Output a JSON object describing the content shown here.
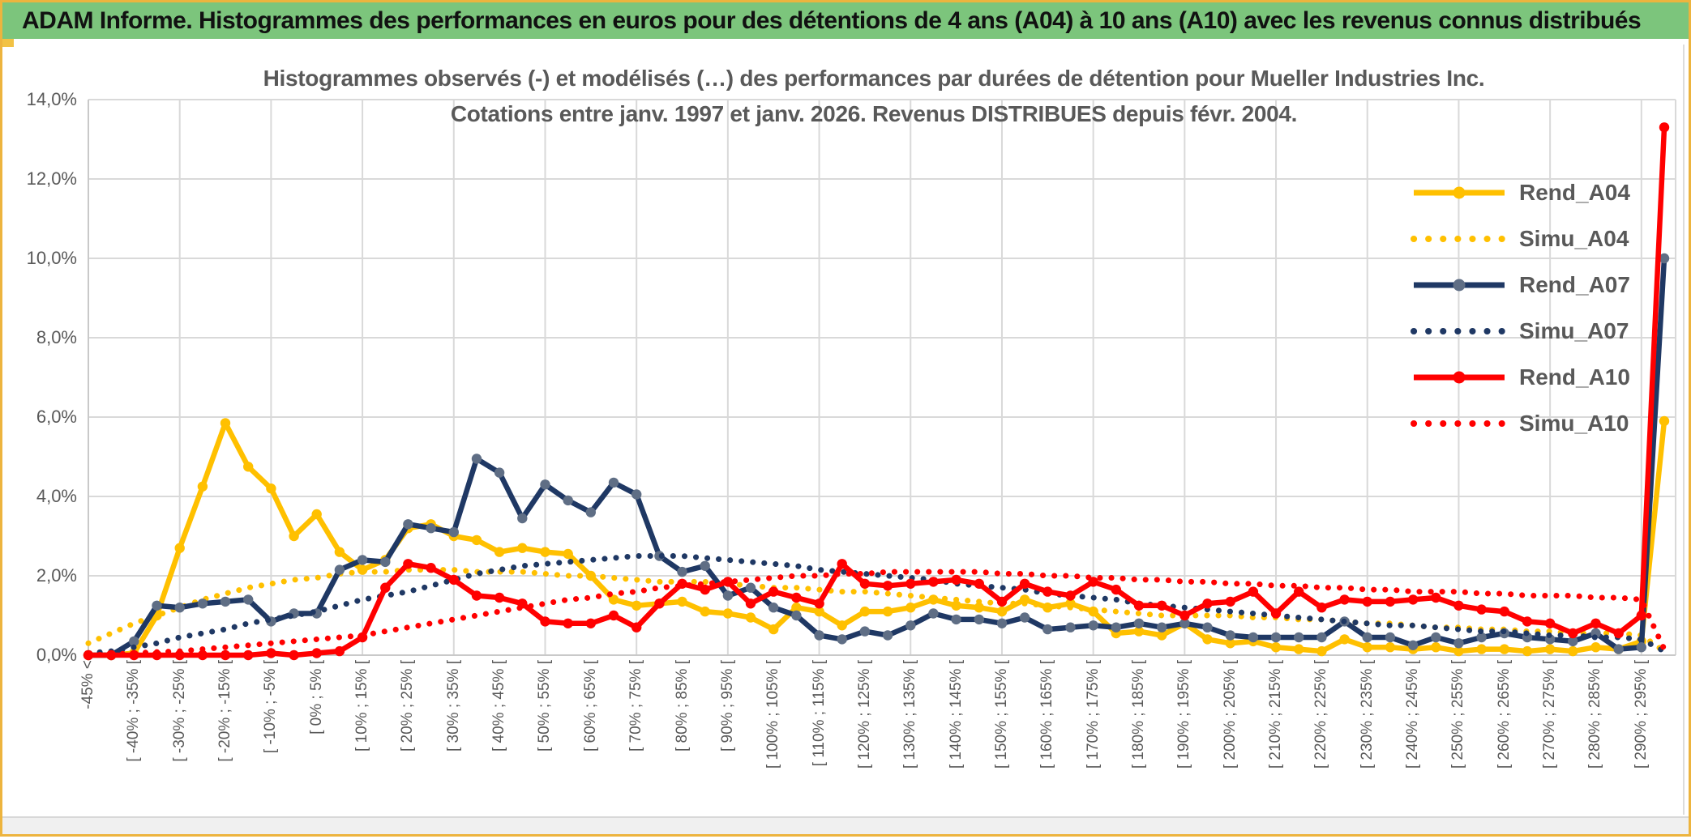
{
  "header": {
    "title": "ADAM Informe. Histogrammes des performances en euros pour des détentions de 4 ans (A04) à 10 ans (A10) avec les revenus connus distribués"
  },
  "colors": {
    "header_green": "#7CC57C",
    "frame_gold": "#EDB43E",
    "grid": "#D9D9D9",
    "axis_text": "#595959",
    "gold": "#FFC000",
    "navy": "#1F3864",
    "red": "#FF0000"
  },
  "chart_data": {
    "type": "line",
    "title_line1": "Histogrammes observés (-) et modélisés (…) des performances par durées de détention pour Mueller Industries Inc.",
    "title_line2": "Cotations entre janv. 1997 et janv. 2026. Revenus DISTRIBUES depuis févr. 2004.",
    "ylim": [
      0,
      14
    ],
    "ytick_step": 2,
    "ytick_labels": [
      "0,0%",
      "2,0%",
      "4,0%",
      "6,0%",
      "8,0%",
      "10,0%",
      "12,0%",
      "14,0%"
    ],
    "grid": true,
    "legend_position": "right-overlay",
    "categories": [
      "-45% <",
      "",
      "[ -40% ; -35% [",
      "",
      "[ -30% ; -25% [",
      "",
      "[ -20% ; -15% [",
      "",
      "[ -10% ; -5% [",
      "",
      "[ 0% ; 5% [",
      "",
      "[ 10% ; 15% [",
      "",
      "[ 20% ; 25% [",
      "",
      "[ 30% ; 35% [",
      "",
      "[ 40% ; 45% [",
      "",
      "[ 50% ; 55% [",
      "",
      "[ 60% ; 65% [",
      "",
      "[ 70% ; 75% [",
      "",
      "[ 80% ; 85% [",
      "",
      "[ 90% ; 95% [",
      "",
      "[ 100% ; 105% [",
      "",
      "[ 110% ; 115% [",
      "",
      "[ 120% ; 125% [",
      "",
      "[ 130% ; 135% [",
      "",
      "[ 140% ; 145% [",
      "",
      "[ 150% ; 155% [",
      "",
      "[ 160% ; 165% [",
      "",
      "[ 170% ; 175% [",
      "",
      "[ 180% ; 185% [",
      "",
      "[ 190% ; 195% [",
      "",
      "[ 200% ; 205% [",
      "",
      "[ 210% ; 215% [",
      "",
      "[ 220% ; 225% [",
      "",
      "[ 230% ; 235% [",
      "",
      "[ 240% ; 245% [",
      "",
      "[ 250% ; 255% [",
      "",
      "[ 260% ; 265% [",
      "",
      "[ 270% ; 275% [",
      "",
      "[ 280% ; 285% [",
      "",
      "[ 290% ; 295% [",
      ""
    ],
    "series": [
      {
        "name": "Rend_A04",
        "color": "#FFC000",
        "marker_color": "#FFC000",
        "style": "solid",
        "values": [
          0,
          0,
          0.05,
          1.0,
          2.7,
          4.25,
          5.85,
          4.75,
          4.2,
          3.0,
          3.55,
          2.6,
          2.15,
          2.4,
          3.2,
          3.3,
          3.0,
          2.9,
          2.6,
          2.7,
          2.6,
          2.55,
          2.0,
          1.4,
          1.25,
          1.3,
          1.35,
          1.1,
          1.05,
          0.95,
          0.65,
          1.2,
          1.1,
          0.75,
          1.1,
          1.1,
          1.2,
          1.4,
          1.25,
          1.2,
          1.1,
          1.4,
          1.2,
          1.3,
          1.1,
          0.55,
          0.6,
          0.5,
          0.8,
          0.4,
          0.3,
          0.35,
          0.2,
          0.15,
          0.1,
          0.4,
          0.2,
          0.2,
          0.15,
          0.2,
          0.1,
          0.15,
          0.15,
          0.1,
          0.15,
          0.1,
          0.2,
          0.15,
          0.35,
          5.9
        ]
      },
      {
        "name": "Simu_A04",
        "color": "#FFC000",
        "marker_color": "#FFC000",
        "style": "dotted",
        "values": [
          0.3,
          0.55,
          0.8,
          1.0,
          1.2,
          1.4,
          1.55,
          1.7,
          1.8,
          1.9,
          1.95,
          2.05,
          2.1,
          2.1,
          2.15,
          2.15,
          2.15,
          2.1,
          2.1,
          2.1,
          2.05,
          2.0,
          2.0,
          1.95,
          1.9,
          1.85,
          1.85,
          1.85,
          1.8,
          1.75,
          1.7,
          1.7,
          1.65,
          1.6,
          1.6,
          1.55,
          1.5,
          1.45,
          1.4,
          1.35,
          1.3,
          1.3,
          1.25,
          1.2,
          1.15,
          1.1,
          1.05,
          1.0,
          1.0,
          1.0,
          1.0,
          0.95,
          0.95,
          0.9,
          0.9,
          0.85,
          0.8,
          0.8,
          0.75,
          0.7,
          0.7,
          0.65,
          0.65,
          0.6,
          0.6,
          0.55,
          0.55,
          0.55,
          0.5,
          0.1
        ]
      },
      {
        "name": "Rend_A07",
        "color": "#1F3864",
        "marker_color": "#5F6E85",
        "style": "solid",
        "values": [
          0,
          0,
          0.35,
          1.25,
          1.2,
          1.3,
          1.35,
          1.4,
          0.85,
          1.05,
          1.05,
          2.15,
          2.4,
          2.35,
          3.3,
          3.2,
          3.1,
          4.95,
          4.6,
          3.45,
          4.3,
          3.9,
          3.6,
          4.35,
          4.05,
          2.5,
          2.1,
          2.25,
          1.5,
          1.7,
          1.2,
          1.0,
          0.5,
          0.4,
          0.6,
          0.5,
          0.75,
          1.05,
          0.9,
          0.9,
          0.8,
          0.95,
          0.65,
          0.7,
          0.75,
          0.7,
          0.8,
          0.7,
          0.8,
          0.7,
          0.5,
          0.45,
          0.45,
          0.45,
          0.45,
          0.85,
          0.45,
          0.45,
          0.25,
          0.45,
          0.3,
          0.45,
          0.55,
          0.45,
          0.4,
          0.35,
          0.55,
          0.15,
          0.2,
          10.0
        ]
      },
      {
        "name": "Simu_A07",
        "color": "#1F3864",
        "marker_color": "#1F3864",
        "style": "dotted",
        "values": [
          0.05,
          0.1,
          0.2,
          0.3,
          0.45,
          0.55,
          0.65,
          0.8,
          0.9,
          1.0,
          1.1,
          1.25,
          1.4,
          1.5,
          1.6,
          1.75,
          1.9,
          2.05,
          2.15,
          2.25,
          2.3,
          2.35,
          2.4,
          2.45,
          2.5,
          2.5,
          2.5,
          2.45,
          2.4,
          2.35,
          2.3,
          2.25,
          2.15,
          2.1,
          2.05,
          2.0,
          1.95,
          1.9,
          1.8,
          1.75,
          1.7,
          1.65,
          1.55,
          1.5,
          1.45,
          1.4,
          1.3,
          1.25,
          1.2,
          1.15,
          1.1,
          1.05,
          1.0,
          0.95,
          0.9,
          0.85,
          0.8,
          0.75,
          0.75,
          0.7,
          0.65,
          0.6,
          0.6,
          0.55,
          0.5,
          0.5,
          0.45,
          0.45,
          0.4,
          0.1
        ]
      },
      {
        "name": "Rend_A10",
        "color": "#FF0000",
        "marker_color": "#FF0000",
        "style": "solid",
        "values": [
          0,
          0,
          0,
          0,
          0,
          0,
          0,
          0,
          0.05,
          0,
          0.05,
          0.1,
          0.45,
          1.7,
          2.3,
          2.2,
          1.9,
          1.5,
          1.45,
          1.3,
          0.85,
          0.8,
          0.8,
          1.0,
          0.7,
          1.3,
          1.8,
          1.65,
          1.85,
          1.3,
          1.6,
          1.45,
          1.3,
          2.3,
          1.8,
          1.75,
          1.8,
          1.85,
          1.9,
          1.8,
          1.35,
          1.8,
          1.6,
          1.5,
          1.85,
          1.65,
          1.25,
          1.25,
          1.0,
          1.3,
          1.35,
          1.6,
          1.05,
          1.6,
          1.2,
          1.4,
          1.35,
          1.35,
          1.4,
          1.45,
          1.25,
          1.15,
          1.1,
          0.85,
          0.8,
          0.55,
          0.8,
          0.55,
          1.0,
          13.3
        ]
      },
      {
        "name": "Simu_A10",
        "color": "#FF0000",
        "marker_color": "#FF0000",
        "style": "dotted",
        "values": [
          0,
          0.02,
          0.05,
          0.08,
          0.1,
          0.15,
          0.2,
          0.25,
          0.3,
          0.35,
          0.4,
          0.45,
          0.5,
          0.6,
          0.7,
          0.8,
          0.9,
          1.0,
          1.1,
          1.2,
          1.3,
          1.4,
          1.45,
          1.55,
          1.6,
          1.7,
          1.75,
          1.8,
          1.85,
          1.9,
          1.95,
          2.0,
          2.0,
          2.05,
          2.05,
          2.1,
          2.1,
          2.1,
          2.1,
          2.1,
          2.05,
          2.05,
          2.0,
          2.0,
          1.95,
          1.95,
          1.9,
          1.9,
          1.85,
          1.85,
          1.8,
          1.8,
          1.75,
          1.75,
          1.7,
          1.7,
          1.65,
          1.65,
          1.6,
          1.6,
          1.6,
          1.55,
          1.55,
          1.5,
          1.5,
          1.5,
          1.45,
          1.45,
          1.4,
          0.15
        ]
      }
    ]
  }
}
